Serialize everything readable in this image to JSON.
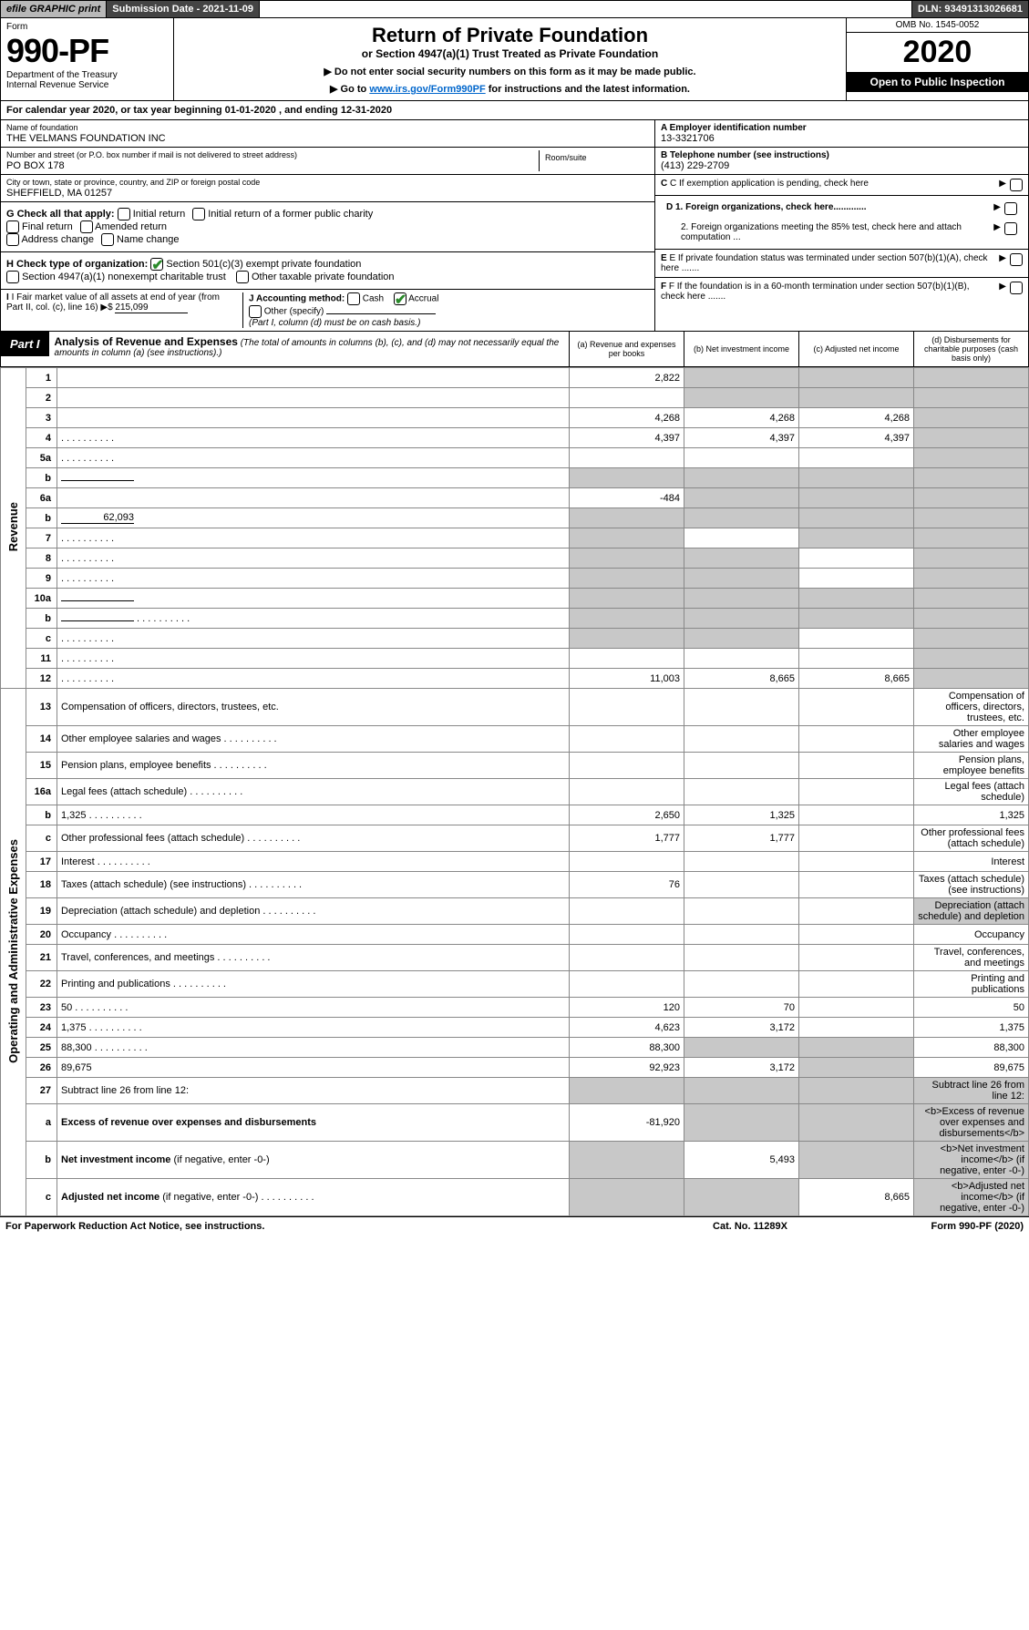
{
  "topbar": {
    "efile": "efile GRAPHIC print",
    "subdate_label": "Submission Date - 2021-11-09",
    "dln": "DLN: 93491313026681"
  },
  "header": {
    "form_word": "Form",
    "form_number": "990-PF",
    "dept": "Department of the Treasury",
    "irs": "Internal Revenue Service",
    "title": "Return of Private Foundation",
    "subtitle": "or Section 4947(a)(1) Trust Treated as Private Foundation",
    "note1": "▶ Do not enter social security numbers on this form as it may be made public.",
    "note2_pre": "▶ Go to ",
    "note2_link": "www.irs.gov/Form990PF",
    "note2_post": " for instructions and the latest information.",
    "omb": "OMB No. 1545-0052",
    "year": "2020",
    "openpub": "Open to Public Inspection"
  },
  "calyear": {
    "text_pre": "For calendar year 2020, or tax year beginning ",
    "begin": "01-01-2020",
    "text_mid": " , and ending ",
    "end": "12-31-2020"
  },
  "entity": {
    "name_label": "Name of foundation",
    "name": "THE VELMANS FOUNDATION INC",
    "addr_label": "Number and street (or P.O. box number if mail is not delivered to street address)",
    "addr": "PO BOX 178",
    "room_label": "Room/suite",
    "room": "",
    "city_label": "City or town, state or province, country, and ZIP or foreign postal code",
    "city": "SHEFFIELD, MA  01257",
    "a_label": "A Employer identification number",
    "a_val": "13-3321706",
    "b_label": "B Telephone number (see instructions)",
    "b_val": "(413) 229-2709",
    "c_label": "C If exemption application is pending, check here",
    "d1": "D 1. Foreign organizations, check here.............",
    "d2": "2. Foreign organizations meeting the 85% test, check here and attach computation ...",
    "e": "E  If private foundation status was terminated under section 507(b)(1)(A), check here .......",
    "f": "F  If the foundation is in a 60-month termination under section 507(b)(1)(B), check here .......",
    "g_label": "G Check all that apply:",
    "g_opts": [
      "Initial return",
      "Initial return of a former public charity",
      "Final return",
      "Amended return",
      "Address change",
      "Name change"
    ],
    "h_label": "H Check type of organization:",
    "h1": "Section 501(c)(3) exempt private foundation",
    "h2": "Section 4947(a)(1) nonexempt charitable trust",
    "h3": "Other taxable private foundation",
    "i_label": "I Fair market value of all assets at end of year (from Part II, col. (c), line 16)",
    "i_val": "215,099",
    "j_label": "J Accounting method:",
    "j_cash": "Cash",
    "j_accrual": "Accrual",
    "j_other": "Other (specify)",
    "j_note": "(Part I, column (d) must be on cash basis.)"
  },
  "part1": {
    "label": "Part I",
    "title": "Analysis of Revenue and Expenses",
    "note": "(The total of amounts in columns (b), (c), and (d) may not necessarily equal the amounts in column (a) (see instructions).)",
    "col_a": "(a)   Revenue and expenses per books",
    "col_b": "(b)  Net investment income",
    "col_c": "(c)  Adjusted net income",
    "col_d": "(d)  Disbursements for charitable purposes (cash basis only)"
  },
  "side": {
    "revenue": "Revenue",
    "expenses": "Operating and Administrative Expenses"
  },
  "rows": [
    {
      "n": "1",
      "d": "",
      "a": "2,822",
      "b": "",
      "c": "",
      "gb": true,
      "gc": true,
      "gd": true
    },
    {
      "n": "2",
      "d": "",
      "a": "",
      "b": "",
      "c": "",
      "gb": true,
      "gc": true,
      "gd": true,
      "checked": true
    },
    {
      "n": "3",
      "d": "",
      "a": "4,268",
      "b": "4,268",
      "c": "4,268",
      "gd": true
    },
    {
      "n": "4",
      "d": "",
      "a": "4,397",
      "b": "4,397",
      "c": "4,397",
      "gd": true,
      "dots": true
    },
    {
      "n": "5a",
      "d": "",
      "a": "",
      "b": "",
      "c": "",
      "gd": true,
      "dots": true
    },
    {
      "n": "b",
      "d": "",
      "a": "",
      "b": "",
      "c": "",
      "ga": true,
      "gb": true,
      "gc": true,
      "gd": true,
      "inline": true
    },
    {
      "n": "6a",
      "d": "",
      "a": "-484",
      "b": "",
      "c": "",
      "gb": true,
      "gc": true,
      "gd": true
    },
    {
      "n": "b",
      "d": "",
      "a": "",
      "b": "",
      "c": "",
      "ga": true,
      "gb": true,
      "gc": true,
      "gd": true,
      "inline": true,
      "inlineval": "62,093"
    },
    {
      "n": "7",
      "d": "",
      "a": "",
      "b": "",
      "c": "",
      "ga": true,
      "gc": true,
      "gd": true,
      "dots": true
    },
    {
      "n": "8",
      "d": "",
      "a": "",
      "b": "",
      "c": "",
      "ga": true,
      "gb": true,
      "gd": true,
      "dots": true
    },
    {
      "n": "9",
      "d": "",
      "a": "",
      "b": "",
      "c": "",
      "ga": true,
      "gb": true,
      "gd": true,
      "dots": true
    },
    {
      "n": "10a",
      "d": "",
      "a": "",
      "b": "",
      "c": "",
      "ga": true,
      "gb": true,
      "gc": true,
      "gd": true,
      "inline": true
    },
    {
      "n": "b",
      "d": "",
      "a": "",
      "b": "",
      "c": "",
      "ga": true,
      "gb": true,
      "gc": true,
      "gd": true,
      "inline": true,
      "dots": true
    },
    {
      "n": "c",
      "d": "",
      "a": "",
      "b": "",
      "c": "",
      "ga": true,
      "gb": true,
      "gd": true,
      "dots": true
    },
    {
      "n": "11",
      "d": "",
      "a": "",
      "b": "",
      "c": "",
      "gd": true,
      "dots": true
    },
    {
      "n": "12",
      "d": "",
      "a": "11,003",
      "b": "8,665",
      "c": "8,665",
      "gd": true,
      "dots": true
    }
  ],
  "exprows": [
    {
      "n": "13",
      "d": "Compensation of officers, directors, trustees, etc."
    },
    {
      "n": "14",
      "d": "Other employee salaries and wages",
      "dots": true
    },
    {
      "n": "15",
      "d": "Pension plans, employee benefits",
      "dots": true
    },
    {
      "n": "16a",
      "d": "Legal fees (attach schedule)",
      "dots": true
    },
    {
      "n": "b",
      "d": "1,325",
      "a": "2,650",
      "b": "1,325",
      "c": "",
      "dots": true
    },
    {
      "n": "c",
      "d": "Other professional fees (attach schedule)",
      "a": "1,777",
      "b": "1,777",
      "dots": true
    },
    {
      "n": "17",
      "d": "Interest",
      "dots": true
    },
    {
      "n": "18",
      "d": "Taxes (attach schedule) (see instructions)",
      "a": "76",
      "dots": true
    },
    {
      "n": "19",
      "d": "Depreciation (attach schedule) and depletion",
      "gd": true,
      "dots": true
    },
    {
      "n": "20",
      "d": "Occupancy",
      "dots": true
    },
    {
      "n": "21",
      "d": "Travel, conferences, and meetings",
      "dots": true
    },
    {
      "n": "22",
      "d": "Printing and publications",
      "dots": true
    },
    {
      "n": "23",
      "d": "50",
      "a": "120",
      "b": "70",
      "dots": true
    },
    {
      "n": "24",
      "d": "1,375",
      "a": "4,623",
      "b": "3,172",
      "dots": true
    },
    {
      "n": "25",
      "d": "88,300",
      "a": "88,300",
      "gb": true,
      "gc": true,
      "dots": true
    },
    {
      "n": "26",
      "d": "89,675",
      "a": "92,923",
      "b": "3,172",
      "gc": true
    },
    {
      "n": "27",
      "d": "Subtract line 26 from line 12:",
      "ga": true,
      "gb": true,
      "gc": true,
      "gd": true
    },
    {
      "n": "a",
      "d": "<b>Excess of revenue over expenses and disbursements</b>",
      "a": "-81,920",
      "gb": true,
      "gc": true,
      "gd": true
    },
    {
      "n": "b",
      "d": "<b>Net investment income</b> (if negative, enter -0-)",
      "ga": true,
      "b": "5,493",
      "gc": true,
      "gd": true
    },
    {
      "n": "c",
      "d": "<b>Adjusted net income</b> (if negative, enter -0-)",
      "ga": true,
      "gb": true,
      "c": "8,665",
      "gd": true,
      "dots": true
    }
  ],
  "footer": {
    "left": "For Paperwork Reduction Act Notice, see instructions.",
    "mid": "Cat. No. 11289X",
    "right": "Form 990-PF (2020)"
  }
}
